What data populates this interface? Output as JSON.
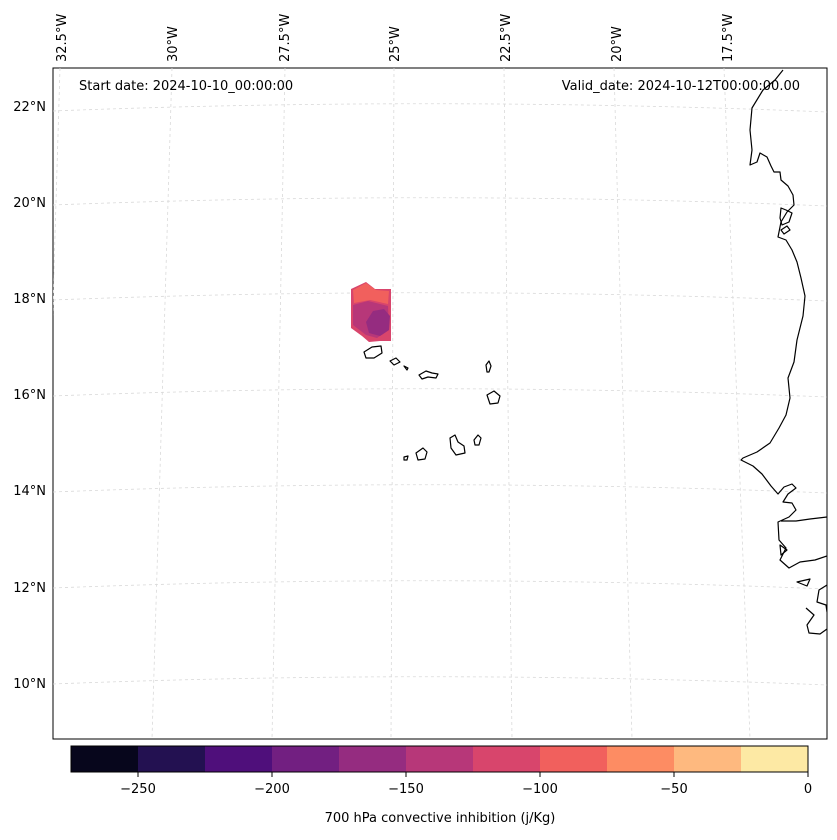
{
  "map": {
    "start_label": "Start date: 2024-10-10_00:00:00",
    "valid_label": "Valid_date: 2024-10-12T00:00:00.00",
    "lon_labels": [
      "32.5°W",
      "30°W",
      "27.5°W",
      "25°W",
      "22.5°W",
      "20°W",
      "17.5°W"
    ],
    "lat_labels": [
      "22°N",
      "20°N",
      "18°N",
      "16°N",
      "14°N",
      "12°N",
      "10°N"
    ]
  },
  "colorbar": {
    "label": "700 hPa convective inhibition (j/Kg)",
    "tick_labels": [
      "−250",
      "−200",
      "−150",
      "−100",
      "−50",
      "0"
    ],
    "colors": [
      "#07061c",
      "#231151",
      "#4f0f7b",
      "#721f81",
      "#952c80",
      "#b73779",
      "#d8456c",
      "#f1605d",
      "#fd8c63",
      "#feb97f",
      "#fde9a4"
    ]
  },
  "colors": {
    "coast": "#000000",
    "grid": "#d9d9d9",
    "field_low": "#8c2981",
    "field_mid": "#c03a76",
    "field_high": "#f1605d"
  }
}
